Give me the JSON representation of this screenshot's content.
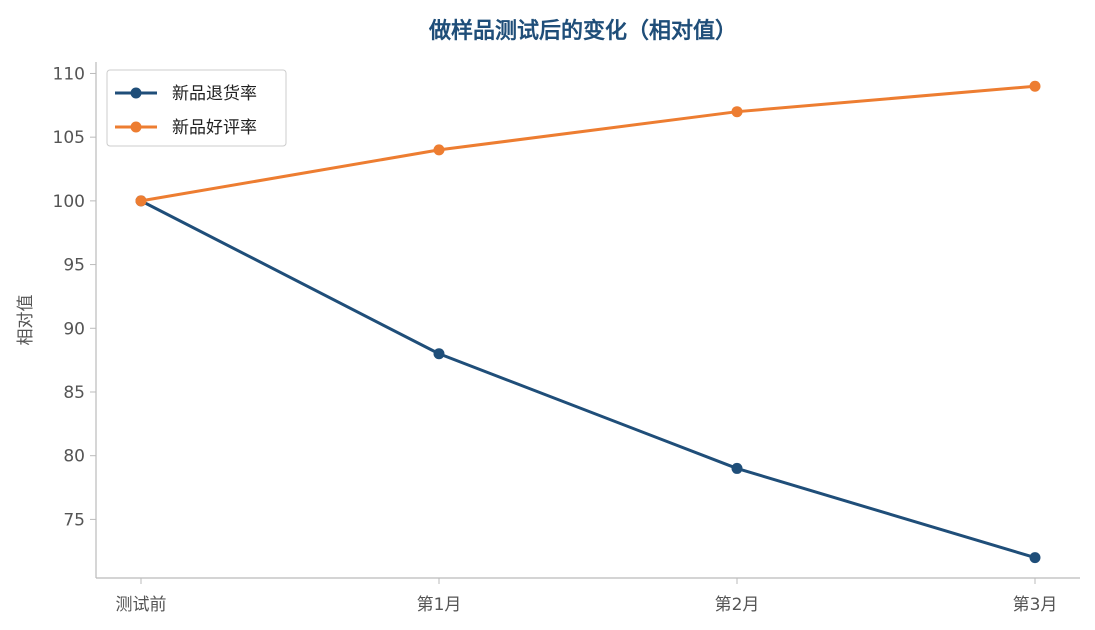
{
  "chart_data": {
    "type": "line",
    "title": "做样品测试后的变化（相对值）",
    "xlabel": "",
    "ylabel": "相对值",
    "categories": [
      "测试前",
      "第1月",
      "第2月",
      "第3月"
    ],
    "ylim": [
      70.4,
      110.9
    ],
    "yticks": [
      75,
      80,
      85,
      90,
      95,
      100,
      105,
      110
    ],
    "grid": false,
    "legend_position": "top-left",
    "title_color": "#1f4e79",
    "series": [
      {
        "name": "新品退货率",
        "values": [
          100,
          88,
          79,
          72
        ],
        "color": "#1f4e79"
      },
      {
        "name": "新品好评率",
        "values": [
          100,
          104,
          107,
          109
        ],
        "color": "#ed7d31"
      }
    ]
  }
}
